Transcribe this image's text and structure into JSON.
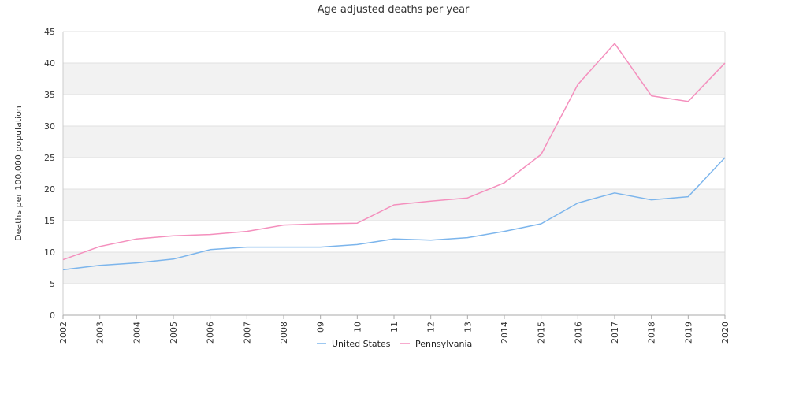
{
  "chart_data": {
    "type": "line",
    "title": "Age adjusted deaths per year",
    "xlabel": "",
    "ylabel": "Deaths per 100,000 population",
    "categories": [
      "2002",
      "2003",
      "2004",
      "2005",
      "2006",
      "2007",
      "2008",
      "09",
      "10",
      "11",
      "12",
      "13",
      "2014",
      "2015",
      "2016",
      "2017",
      "2018",
      "2019",
      "2020"
    ],
    "ylim": [
      0,
      45
    ],
    "yticks": [
      0,
      5,
      10,
      15,
      20,
      25,
      30,
      35,
      40,
      45
    ],
    "grid": "alternating horizontal bands",
    "legend_position": "bottom-center",
    "series": [
      {
        "name": "United States",
        "color": "#7cb5ec",
        "values": [
          7.2,
          7.9,
          8.3,
          8.9,
          10.4,
          10.8,
          10.8,
          10.8,
          11.2,
          12.1,
          11.9,
          12.3,
          13.3,
          14.5,
          17.8,
          19.4,
          18.3,
          18.8,
          25.0
        ]
      },
      {
        "name": "Pennsylvania",
        "color": "#f48fbd",
        "values": [
          8.8,
          10.9,
          12.1,
          12.6,
          12.8,
          13.3,
          14.3,
          14.5,
          14.6,
          17.5,
          18.1,
          18.6,
          21.0,
          25.5,
          36.6,
          43.1,
          34.8,
          33.9,
          40.0
        ]
      }
    ]
  }
}
